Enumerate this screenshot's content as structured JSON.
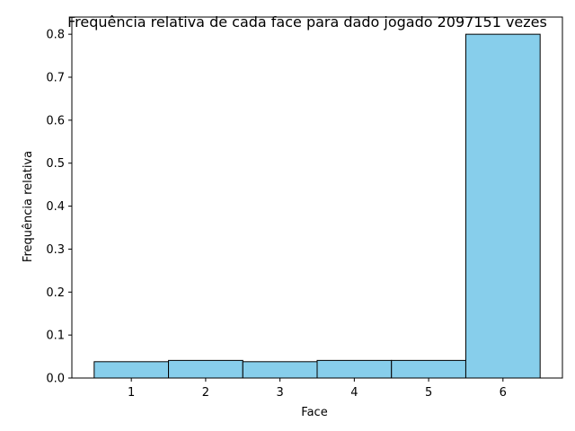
{
  "chart_data": {
    "type": "bar",
    "title": "Frequência relativa de cada face para dado jogado 2097151 vezes",
    "xlabel": "Face",
    "ylabel": "Frequência relativa",
    "categories": [
      "1",
      "2",
      "3",
      "4",
      "5",
      "6"
    ],
    "values": [
      0.038,
      0.041,
      0.038,
      0.041,
      0.041,
      0.8
    ],
    "ylim": [
      0,
      0.84
    ],
    "yticks": [
      0.0,
      0.1,
      0.2,
      0.3,
      0.4,
      0.5,
      0.6,
      0.7,
      0.8
    ],
    "ytick_labels": [
      "0.0",
      "0.1",
      "0.2",
      "0.3",
      "0.4",
      "0.5",
      "0.6",
      "0.7",
      "0.8"
    ],
    "grid": false,
    "bar_color": "#87ceeb",
    "edge_color": "#000000"
  }
}
